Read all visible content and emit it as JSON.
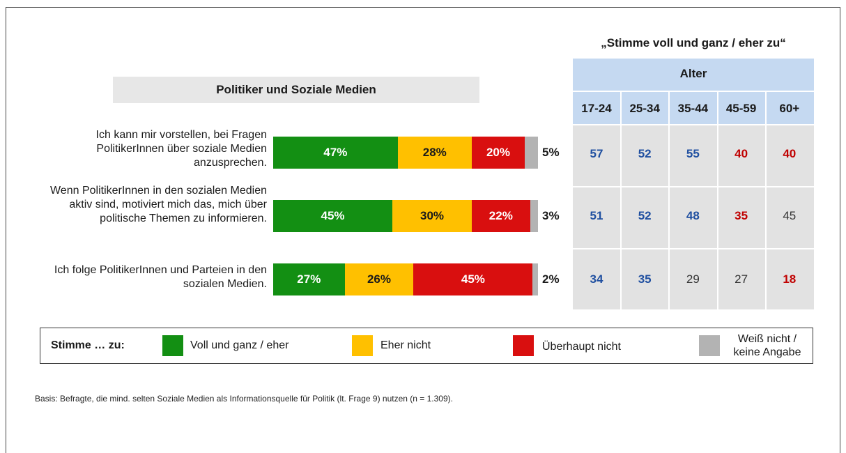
{
  "panel_title": "Politiker und Soziale Medien",
  "chart_data": [
    {
      "type": "bar",
      "orientation": "horizontal",
      "stacked": true,
      "categories": [
        "Ich kann mir vorstellen, bei Fragen PolitikerInnen über soziale Medien anzusprechen.",
        "Wenn PolitikerInnen in den sozialen Medien aktiv sind, motiviert mich das, mich über politische Themen zu informieren.",
        "Ich folge PolitikerInnen und Parteien in den sozialen Medien."
      ],
      "series": [
        {
          "name": "Voll und ganz / eher",
          "color": "#138f13",
          "values": [
            47,
            45,
            27
          ],
          "labels": [
            "47%",
            "45%",
            "27%"
          ]
        },
        {
          "name": "Eher nicht",
          "color": "#ffc000",
          "values": [
            28,
            30,
            26
          ],
          "labels": [
            "28%",
            "30%",
            "26%"
          ]
        },
        {
          "name": "Überhaupt nicht",
          "color": "#d90f0f",
          "values": [
            20,
            22,
            45
          ],
          "labels": [
            "20%",
            "22%",
            "45%"
          ]
        },
        {
          "name": "Weiß nicht / keine Angabe",
          "color": "#b3b3b3",
          "values": [
            5,
            3,
            2
          ],
          "labels": [
            "5%",
            "3%",
            "2%"
          ]
        }
      ]
    },
    {
      "type": "table",
      "title": "„Stimme voll und ganz / eher zu“",
      "group_header": "Alter",
      "columns": [
        "17-24",
        "25-34",
        "35-44",
        "45-59",
        "60+"
      ],
      "rows": [
        [
          {
            "v": "57",
            "s": "blue"
          },
          {
            "v": "52",
            "s": "blue"
          },
          {
            "v": "55",
            "s": "blue"
          },
          {
            "v": "40",
            "s": "red"
          },
          {
            "v": "40",
            "s": "red"
          }
        ],
        [
          {
            "v": "51",
            "s": "blue"
          },
          {
            "v": "52",
            "s": "blue"
          },
          {
            "v": "48",
            "s": "blue"
          },
          {
            "v": "35",
            "s": "red"
          },
          {
            "v": "45",
            "s": "plain"
          }
        ],
        [
          {
            "v": "34",
            "s": "blue"
          },
          {
            "v": "35",
            "s": "blue"
          },
          {
            "v": "29",
            "s": "plain"
          },
          {
            "v": "27",
            "s": "plain"
          },
          {
            "v": "18",
            "s": "red"
          }
        ]
      ]
    }
  ],
  "legend": {
    "title": "Stimme … zu:",
    "items": [
      {
        "label": "Voll und ganz / eher",
        "color": "#138f13"
      },
      {
        "label": "Eher nicht",
        "color": "#ffc000"
      },
      {
        "label": "Überhaupt nicht",
        "color": "#d90f0f"
      },
      {
        "label": "Weiß nicht / keine Angabe",
        "color": "#b3b3b3"
      }
    ]
  },
  "footnote": "Basis: Befragte, die mind. selten Soziale Medien als Informationsquelle für Politik (lt. Frage 9) nutzen (n = 1.309)."
}
